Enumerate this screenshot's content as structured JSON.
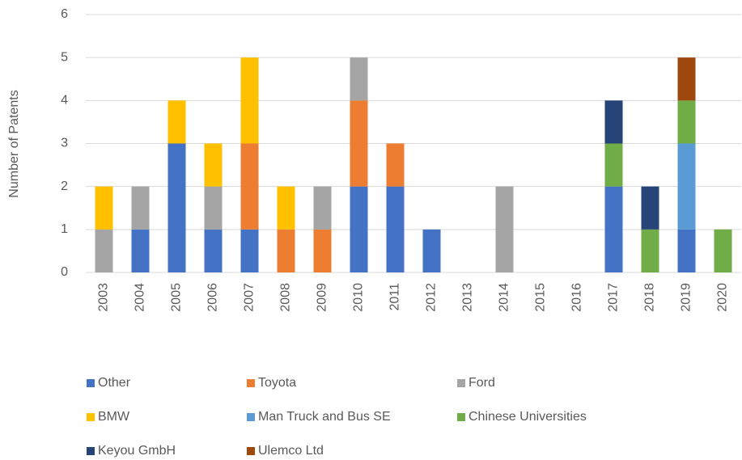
{
  "chart_data": {
    "type": "stacked_bar",
    "y_label": "Number of Patents",
    "categories": [
      "2003",
      "2004",
      "2005",
      "2006",
      "2007",
      "2008",
      "2009",
      "2010",
      "2011",
      "2012",
      "2013",
      "2014",
      "2015",
      "2016",
      "2017",
      "2018",
      "2019",
      "2020"
    ],
    "series": [
      {
        "name": "Other",
        "color": "#4472c4",
        "values": [
          0,
          1,
          3,
          1,
          1,
          0,
          0,
          2,
          2,
          1,
          0,
          0,
          0,
          0,
          2,
          0,
          1,
          0
        ]
      },
      {
        "name": "Toyota",
        "color": "#ed7d31",
        "values": [
          0,
          0,
          0,
          0,
          2,
          1,
          1,
          2,
          1,
          0,
          0,
          0,
          0,
          0,
          0,
          0,
          0,
          0
        ]
      },
      {
        "name": "Ford",
        "color": "#a5a5a5",
        "values": [
          1,
          1,
          0,
          1,
          0,
          0,
          1,
          1,
          0,
          0,
          0,
          2,
          0,
          0,
          0,
          0,
          0,
          0
        ]
      },
      {
        "name": "BMW",
        "color": "#ffc000",
        "values": [
          1,
          0,
          1,
          1,
          2,
          1,
          0,
          0,
          0,
          0,
          0,
          0,
          0,
          0,
          0,
          0,
          0,
          0
        ]
      },
      {
        "name": "Man Truck and Bus SE",
        "color": "#5b9bd5",
        "values": [
          0,
          0,
          0,
          0,
          0,
          0,
          0,
          0,
          0,
          0,
          0,
          0,
          0,
          0,
          0,
          0,
          2,
          0
        ]
      },
      {
        "name": "Chinese Universities",
        "color": "#70ad47",
        "values": [
          0,
          0,
          0,
          0,
          0,
          0,
          0,
          0,
          0,
          0,
          0,
          0,
          0,
          0,
          1,
          1,
          1,
          1
        ]
      },
      {
        "name": "Keyou GmbH",
        "color": "#264478",
        "values": [
          0,
          0,
          0,
          0,
          0,
          0,
          0,
          0,
          0,
          0,
          0,
          0,
          0,
          0,
          1,
          1,
          0,
          0
        ]
      },
      {
        "name": "Ulemco Ltd",
        "color": "#9e480e",
        "values": [
          0,
          0,
          0,
          0,
          0,
          0,
          0,
          0,
          0,
          0,
          0,
          0,
          0,
          0,
          0,
          0,
          1,
          0
        ]
      }
    ],
    "ylim": [
      0,
      6
    ],
    "yticks": [
      0,
      1,
      2,
      3,
      4,
      5,
      6
    ],
    "grid": true,
    "legend": "bottom"
  }
}
